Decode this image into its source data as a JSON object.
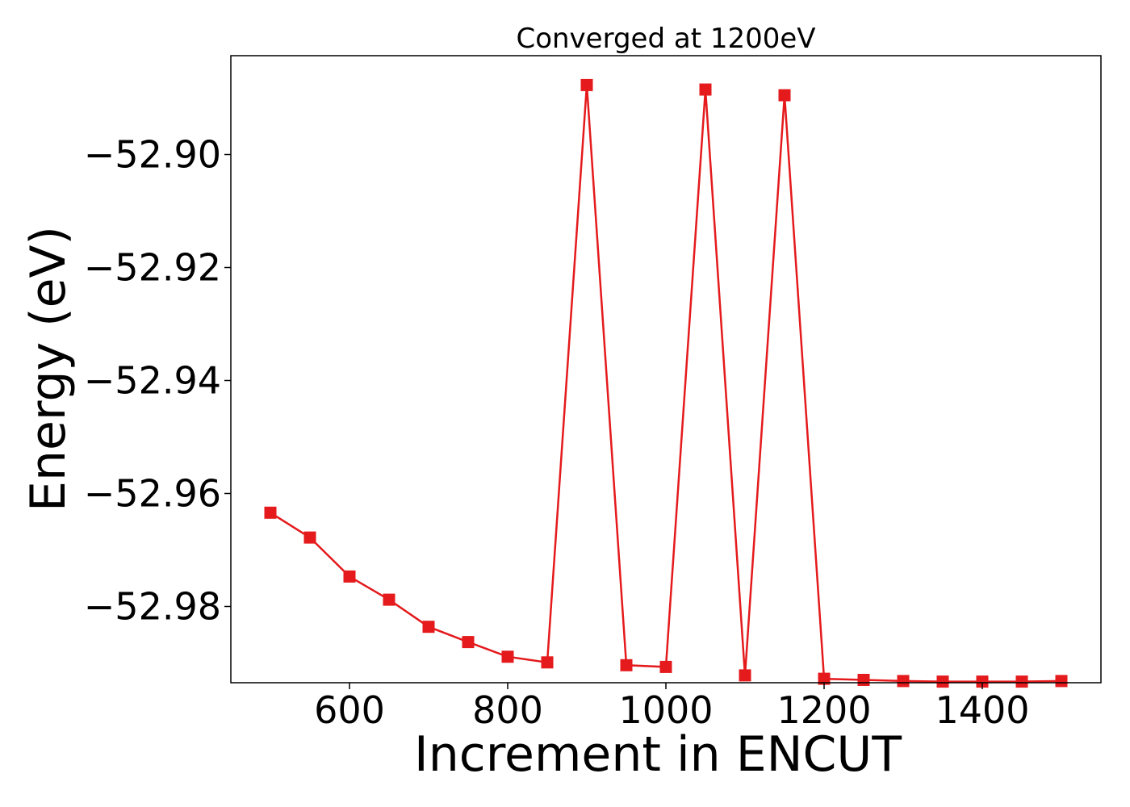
{
  "chart_data": {
    "type": "line",
    "title": "Converged at 1200eV",
    "xlabel": "Increment in ENCUT",
    "ylabel": "Energy (eV)",
    "xlim": [
      450,
      1550
    ],
    "ylim": [
      -52.9935,
      -52.8825
    ],
    "x_ticks": [
      600,
      800,
      1000,
      1200,
      1400
    ],
    "x_tick_labels": [
      "600",
      "800",
      "1000",
      "1200",
      "1400"
    ],
    "y_ticks": [
      -52.98,
      -52.96,
      -52.94,
      -52.92,
      -52.9
    ],
    "y_tick_labels": [
      "−52.98",
      "−52.96",
      "−52.94",
      "−52.92",
      "−52.90"
    ],
    "grid": false,
    "series": [
      {
        "color": "#e41a1c",
        "marker": "square",
        "x": [
          500,
          550,
          600,
          650,
          700,
          750,
          800,
          850,
          900,
          950,
          1000,
          1050,
          1100,
          1150,
          1200,
          1250,
          1300,
          1350,
          1400,
          1450,
          1500
        ],
        "y": [
          -52.9634,
          -52.9678,
          -52.9747,
          -52.9788,
          -52.9836,
          -52.9863,
          -52.9889,
          -52.9899,
          -52.8877,
          -52.9904,
          -52.9907,
          -52.8885,
          -52.9922,
          -52.8895,
          -52.9928,
          -52.993,
          -52.9932,
          -52.9933,
          -52.9933,
          -52.9933,
          -52.9932
        ]
      }
    ]
  }
}
